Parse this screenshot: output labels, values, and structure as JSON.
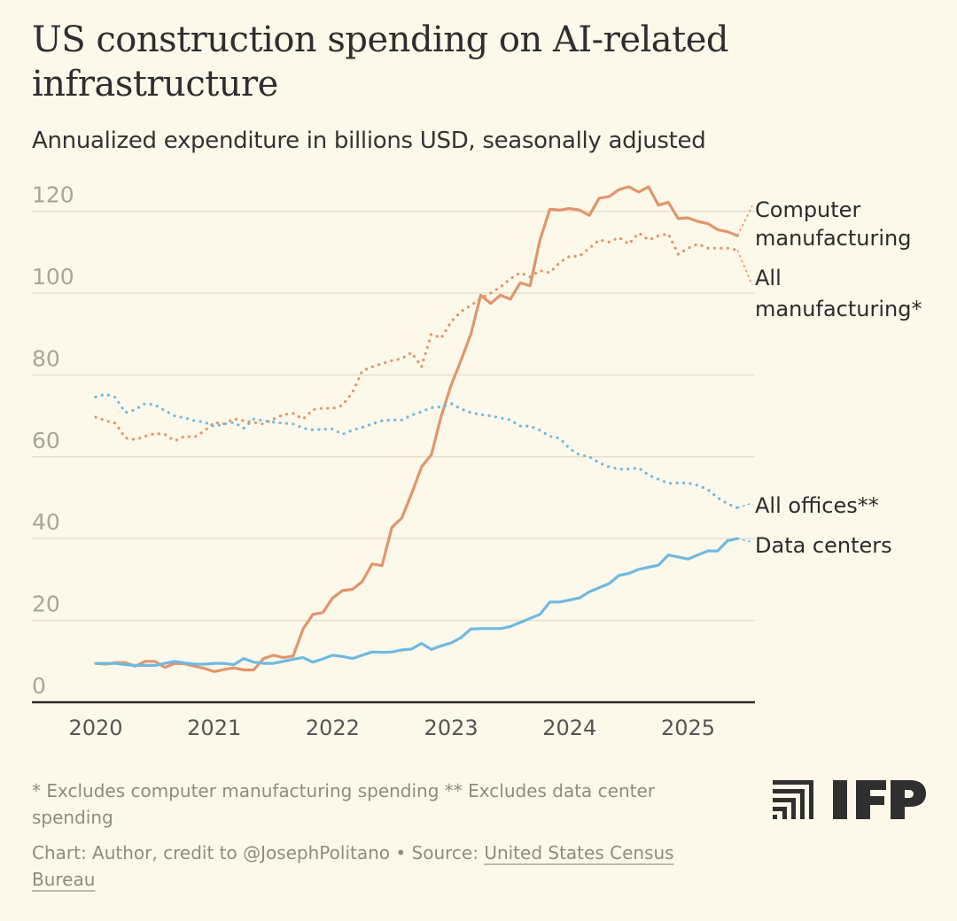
{
  "header": {
    "title": "US construction spending on AI-related infrastructure",
    "subtitle": "Annualized expenditure in billions USD, seasonally adjusted"
  },
  "footer": {
    "note": "* Excludes computer manufacturing spending ** Excludes data center spending",
    "source_prefix": "Chart: Author, credit to @JosephPolitano • Source: ",
    "source_link": "United States Census Bureau",
    "logo_text": "IFP"
  },
  "colors": {
    "orange": "#e2956a",
    "blue": "#6fb9e2",
    "background": "#fdf9ea",
    "grid": "#e4e0d4"
  },
  "chart_data": {
    "type": "line",
    "title": "US construction spending on AI-related infrastructure",
    "subtitle": "Annualized expenditure in billions USD, seasonally adjusted",
    "ylim": [
      0,
      125
    ],
    "xlim": [
      "2019-10",
      "2025-08"
    ],
    "yticks": [
      0,
      20,
      40,
      60,
      80,
      100,
      120
    ],
    "xticks": [
      "2020",
      "2021",
      "2022",
      "2023",
      "2024",
      "2025"
    ],
    "grid": "horizontal",
    "legend": "direct labels at line ends (right)",
    "x": [
      "2020-01",
      "2020-02",
      "2020-03",
      "2020-04",
      "2020-05",
      "2020-06",
      "2020-07",
      "2020-08",
      "2020-09",
      "2020-10",
      "2020-11",
      "2020-12",
      "2021-01",
      "2021-02",
      "2021-03",
      "2021-04",
      "2021-05",
      "2021-06",
      "2021-07",
      "2021-08",
      "2021-09",
      "2021-10",
      "2021-11",
      "2021-12",
      "2022-01",
      "2022-02",
      "2022-03",
      "2022-04",
      "2022-05",
      "2022-06",
      "2022-07",
      "2022-08",
      "2022-09",
      "2022-10",
      "2022-11",
      "2022-12",
      "2023-01",
      "2023-02",
      "2023-03",
      "2023-04",
      "2023-05",
      "2023-06",
      "2023-07",
      "2023-08",
      "2023-09",
      "2023-10",
      "2023-11",
      "2023-12",
      "2024-01",
      "2024-02",
      "2024-03",
      "2024-04",
      "2024-05",
      "2024-06",
      "2024-07",
      "2024-08",
      "2024-09",
      "2024-10",
      "2024-11",
      "2024-12",
      "2025-01",
      "2025-02",
      "2025-03",
      "2025-04",
      "2025-05",
      "2025-06"
    ],
    "series": [
      {
        "name": "Computer manufacturing",
        "color": "#e2956a",
        "style": "solid",
        "values": [
          9.5,
          9.3,
          9.7,
          9.7,
          8.8,
          10,
          10,
          8.5,
          9.5,
          9.4,
          8.8,
          8.3,
          7.5,
          8,
          8.4,
          7.9,
          7.9,
          10.7,
          11.5,
          10.9,
          11.3,
          17.9,
          21.5,
          21.9,
          25.5,
          27.3,
          27.6,
          29.5,
          33.8,
          33.4,
          42.8,
          45,
          51,
          57.5,
          60.5,
          70,
          77.5,
          83.5,
          90,
          99.5,
          97.5,
          99.5,
          98.5,
          102.5,
          101.8,
          113,
          120.5,
          120.3,
          120.7,
          120.3,
          119,
          123.2,
          123.6,
          125.3,
          126,
          124.7,
          126,
          121.5,
          122.2,
          118.2,
          118.4,
          117.5,
          117,
          115.5,
          115,
          114
        ]
      },
      {
        "name": "All manufacturing*",
        "color": "#e2956a",
        "style": "dotted",
        "values": [
          69.7,
          68.8,
          68.2,
          64.6,
          64.2,
          65,
          65.7,
          65.5,
          63.9,
          65,
          64.8,
          66.3,
          68.4,
          68.1,
          69.3,
          68.8,
          68.4,
          68,
          69.2,
          70.3,
          70.6,
          69.2,
          71.5,
          71.9,
          71.8,
          72.6,
          75.7,
          81,
          82,
          82.8,
          83.5,
          84,
          85.5,
          82,
          90,
          89,
          93,
          95.5,
          97,
          98.7,
          100,
          101.5,
          103.5,
          105,
          104,
          105.5,
          105,
          107.5,
          109,
          109,
          111,
          113,
          112.5,
          113.6,
          112,
          114.7,
          113,
          114,
          114.5,
          109.5,
          111,
          112,
          111,
          111,
          111,
          110.5
        ]
      },
      {
        "name": "All offices**",
        "color": "#6fb9e2",
        "style": "dotted",
        "values": [
          74.6,
          75.3,
          74.5,
          70.8,
          71.5,
          73,
          72.7,
          71.3,
          70,
          69.5,
          68.8,
          68.5,
          67.4,
          68,
          68.4,
          67,
          69.2,
          68.8,
          68.5,
          68.2,
          68,
          67,
          66.6,
          66.7,
          66.8,
          65.5,
          66.5,
          67.2,
          68,
          68.8,
          69,
          69,
          70.2,
          71,
          72,
          72.2,
          73,
          71.7,
          70.8,
          70.3,
          70,
          69.5,
          69,
          67.5,
          67.5,
          66.5,
          65,
          64.5,
          62,
          60.5,
          60,
          58.5,
          57.5,
          57,
          57,
          57.3,
          55.5,
          54.5,
          53.5,
          53.6,
          53.6,
          53,
          52,
          50,
          48.5,
          47.5
        ]
      },
      {
        "name": "Data centers",
        "color": "#6fb9e2",
        "style": "solid",
        "values": [
          9.5,
          9.5,
          9.5,
          9.2,
          9,
          9,
          9,
          9.5,
          10,
          9.6,
          9.3,
          9.3,
          9.5,
          9.5,
          9.2,
          10.7,
          9.8,
          9.5,
          9.5,
          10,
          10.5,
          10.9,
          9.8,
          10.6,
          11.5,
          11.2,
          10.7,
          11.5,
          12.3,
          12.2,
          12.3,
          12.8,
          13,
          14.4,
          12.9,
          13.8,
          14.5,
          15.8,
          17.9,
          18,
          18,
          18,
          18.5,
          19.5,
          20.5,
          21.5,
          24.5,
          24.5,
          25,
          25.5,
          27,
          28,
          29,
          31,
          31.5,
          32.5,
          33,
          33.5,
          36,
          35.5,
          35,
          36,
          37,
          37,
          39.5,
          40
        ]
      }
    ],
    "series_labels": [
      [
        "Computer",
        "manufacturing"
      ],
      [
        "All",
        "manufacturing*"
      ],
      [
        "All offices**"
      ],
      [
        "Data centers"
      ]
    ]
  }
}
